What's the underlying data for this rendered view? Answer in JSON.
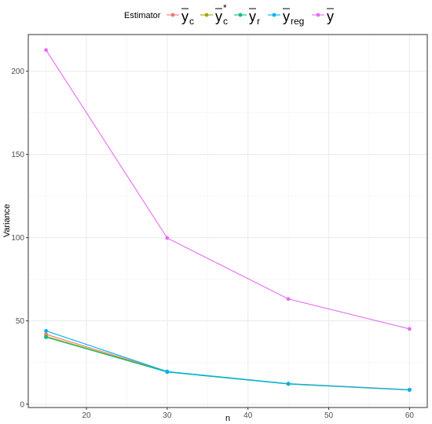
{
  "chart_data": {
    "type": "line",
    "xlabel": "n",
    "ylabel": "Variance",
    "xlim": [
      12.8,
      62.2
    ],
    "ylim": [
      -2,
      222
    ],
    "x_ticks": [
      20,
      30,
      40,
      50,
      60
    ],
    "y_ticks": [
      0,
      50,
      100,
      150,
      200
    ],
    "grid": true,
    "legend": {
      "title": "Estimator",
      "placement": "top",
      "entries": [
        {
          "base": "y",
          "sub": "c",
          "sup": ""
        },
        {
          "base": "y",
          "sub": "c",
          "sup": "*"
        },
        {
          "base": "y",
          "sub": "r",
          "sup": ""
        },
        {
          "base": "y",
          "sub": "reg",
          "sup": ""
        },
        {
          "base": "y",
          "sub": "",
          "sup": ""
        }
      ]
    },
    "x": [
      15,
      30,
      45,
      60
    ],
    "series": [
      {
        "values": [
          42.0,
          19.5,
          12.3,
          8.7
        ],
        "color": "#F8766D"
      },
      {
        "values": [
          40.8,
          19.4,
          12.2,
          8.6
        ],
        "color": "#A3A500"
      },
      {
        "values": [
          40.2,
          19.3,
          12.1,
          8.5
        ],
        "color": "#00BF7D"
      },
      {
        "values": [
          44.0,
          19.6,
          12.3,
          8.6
        ],
        "color": "#00B0F6"
      },
      {
        "values": [
          212.7,
          99.8,
          63.2,
          45.2
        ],
        "color": "#E76BF3"
      }
    ]
  }
}
